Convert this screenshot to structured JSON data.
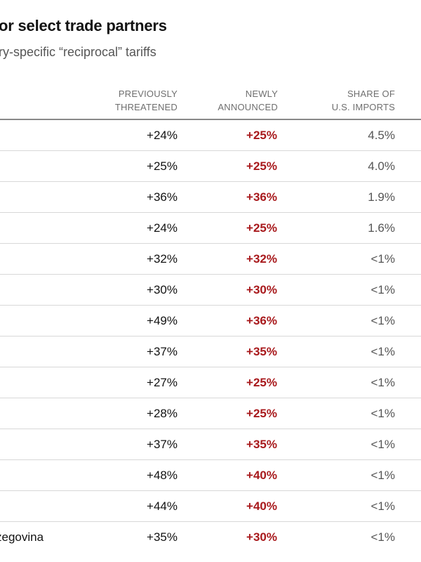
{
  "chart_data": {
    "type": "table",
    "title": "or select trade partners",
    "subtitle": "ry-specific “reciprocal” tariffs",
    "columns": [
      {
        "key": "country",
        "label_lines": []
      },
      {
        "key": "previously_threatened",
        "label_lines": [
          "PREVIOUSLY",
          "THREATENED"
        ]
      },
      {
        "key": "newly_announced",
        "label_lines": [
          "NEWLY",
          "ANNOUNCED"
        ]
      },
      {
        "key": "share_of_us_imports",
        "label_lines": [
          "SHARE OF",
          "U.S. IMPORTS"
        ]
      }
    ],
    "rows": [
      {
        "country": "",
        "previously_threatened": "+24%",
        "newly_announced": "+25%",
        "share_of_us_imports": "4.5%"
      },
      {
        "country": "",
        "previously_threatened": "+25%",
        "newly_announced": "+25%",
        "share_of_us_imports": "4.0%"
      },
      {
        "country": "",
        "previously_threatened": "+36%",
        "newly_announced": "+36%",
        "share_of_us_imports": "1.9%"
      },
      {
        "country": "",
        "previously_threatened": "+24%",
        "newly_announced": "+25%",
        "share_of_us_imports": "1.6%"
      },
      {
        "country": "",
        "previously_threatened": "+32%",
        "newly_announced": "+32%",
        "share_of_us_imports": "<1%"
      },
      {
        "country": "",
        "previously_threatened": "+30%",
        "newly_announced": "+30%",
        "share_of_us_imports": "<1%"
      },
      {
        "country": "",
        "previously_threatened": "+49%",
        "newly_announced": "+36%",
        "share_of_us_imports": "<1%"
      },
      {
        "country": "",
        "previously_threatened": "+37%",
        "newly_announced": "+35%",
        "share_of_us_imports": "<1%"
      },
      {
        "country": "",
        "previously_threatened": "+27%",
        "newly_announced": "+25%",
        "share_of_us_imports": "<1%"
      },
      {
        "country": "",
        "previously_threatened": "+28%",
        "newly_announced": "+25%",
        "share_of_us_imports": "<1%"
      },
      {
        "country": "",
        "previously_threatened": "+37%",
        "newly_announced": "+35%",
        "share_of_us_imports": "<1%"
      },
      {
        "country": "",
        "previously_threatened": "+48%",
        "newly_announced": "+40%",
        "share_of_us_imports": "<1%"
      },
      {
        "country": "",
        "previously_threatened": "+44%",
        "newly_announced": "+40%",
        "share_of_us_imports": "<1%"
      },
      {
        "country": "zegovina",
        "previously_threatened": "+35%",
        "newly_announced": "+30%",
        "share_of_us_imports": "<1%"
      }
    ],
    "colors": {
      "newly_announced": "#a8191c",
      "share": "#555555",
      "header": "#6f6f6f",
      "text": "#121212"
    }
  }
}
